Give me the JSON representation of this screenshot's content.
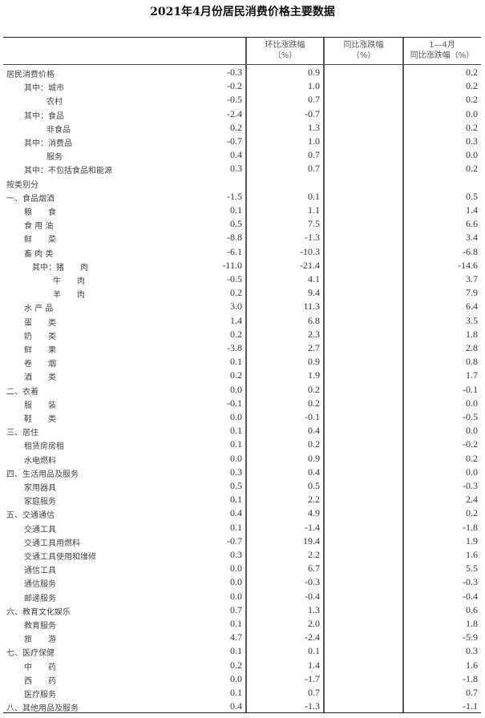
{
  "title": "2021年4月份居民消费价格主要数据",
  "headers": {
    "mom_line1": "环比涨跌幅",
    "mom_line2": "（%）",
    "yoy_line1": "同比涨跌幅",
    "yoy_line2": "（%）",
    "ytd_line1": "1—4月",
    "ytd_line2": "同比涨跌幅（%）"
  },
  "rows": [
    {
      "label": "居民消费价格",
      "level": 0,
      "mom": "-0.3",
      "yoy": "0.9",
      "ytd": "0.2"
    },
    {
      "label": "其中：城市",
      "level": 1,
      "mom": "-0.2",
      "yoy": "1.0",
      "ytd": "0.2"
    },
    {
      "label": "农村",
      "level": 2,
      "mom": "-0.5",
      "yoy": "0.7",
      "ytd": "0.2"
    },
    {
      "label": "其中：食品",
      "level": 1,
      "mom": "-2.4",
      "yoy": "-0.7",
      "ytd": "0.0"
    },
    {
      "label": "非食品",
      "level": 2,
      "mom": "0.2",
      "yoy": "1.3",
      "ytd": "0.2"
    },
    {
      "label": "其中：消费品",
      "level": 1,
      "mom": "-0.7",
      "yoy": "1.0",
      "ytd": "0.3"
    },
    {
      "label": "服务",
      "level": 2,
      "mom": "0.4",
      "yoy": "0.7",
      "ytd": "0.0"
    },
    {
      "label": "其中：不包括食品和能源",
      "level": 1,
      "mom": "0.3",
      "yoy": "0.7",
      "ytd": "0.2"
    },
    {
      "label": "按类别分",
      "level": 0,
      "mom": "",
      "yoy": "",
      "ytd": ""
    },
    {
      "label": "一、食品烟酒",
      "level": 0,
      "mom": "-1.5",
      "yoy": "0.1",
      "ytd": "0.5"
    },
    {
      "label": "粮　　食",
      "level": 1,
      "mom": "0.1",
      "yoy": "1.1",
      "ytd": "1.4"
    },
    {
      "label": "食 用 油",
      "level": 1,
      "mom": "0.5",
      "yoy": "7.5",
      "ytd": "6.6"
    },
    {
      "label": "鲜　　菜",
      "level": 1,
      "mom": "-8.8",
      "yoy": "-1.3",
      "ytd": "3.4"
    },
    {
      "label": "畜 肉 类",
      "level": 1,
      "mom": "-6.1",
      "yoy": "-10.3",
      "ytd": "-6.8"
    },
    {
      "label": "其中：猪　　肉",
      "level": 3,
      "mom": "-11.0",
      "yoy": "-21.4",
      "ytd": "-14.6"
    },
    {
      "label": "牛　　肉",
      "level": 4,
      "mom": "-0.5",
      "yoy": "4.1",
      "ytd": "3.7"
    },
    {
      "label": "羊　　肉",
      "level": 4,
      "mom": "0.2",
      "yoy": "9.4",
      "ytd": "7.9"
    },
    {
      "label": "水 产 品",
      "level": 1,
      "mom": "3.0",
      "yoy": "11.3",
      "ytd": "6.4"
    },
    {
      "label": "蛋　　类",
      "level": 1,
      "mom": "1.4",
      "yoy": "6.8",
      "ytd": "3.5"
    },
    {
      "label": "奶　　类",
      "level": 1,
      "mom": "0.2",
      "yoy": "2.3",
      "ytd": "1.8"
    },
    {
      "label": "鲜　　果",
      "level": 1,
      "mom": "-3.8",
      "yoy": "2.7",
      "ytd": "2.8"
    },
    {
      "label": "卷　　烟",
      "level": 1,
      "mom": "0.1",
      "yoy": "0.9",
      "ytd": "0.8"
    },
    {
      "label": "酒　　类",
      "level": 1,
      "mom": "0.2",
      "yoy": "1.9",
      "ytd": "1.7"
    },
    {
      "label": "二、衣着",
      "level": 0,
      "mom": "0.0",
      "yoy": "0.2",
      "ytd": "-0.1"
    },
    {
      "label": "服　　装",
      "level": 1,
      "mom": "-0.1",
      "yoy": "0.2",
      "ytd": "0.0"
    },
    {
      "label": "鞋　　类",
      "level": 1,
      "mom": "0.0",
      "yoy": "-0.1",
      "ytd": "-0.5"
    },
    {
      "label": "三、居住",
      "level": 0,
      "mom": "0.1",
      "yoy": "0.4",
      "ytd": "0.0"
    },
    {
      "label": "租赁房房租",
      "level": 1,
      "mom": "0.1",
      "yoy": "0.2",
      "ytd": "-0.2"
    },
    {
      "label": "水电燃料",
      "level": 1,
      "mom": "0.0",
      "yoy": "0.9",
      "ytd": "0.2"
    },
    {
      "label": "四、生活用品及服务",
      "level": 0,
      "mom": "0.3",
      "yoy": "0.4",
      "ytd": "0.0"
    },
    {
      "label": "家用器具",
      "level": 1,
      "mom": "0.5",
      "yoy": "0.5",
      "ytd": "-0.3"
    },
    {
      "label": "家庭服务",
      "level": 1,
      "mom": "0.1",
      "yoy": "2.2",
      "ytd": "2.4"
    },
    {
      "label": "五、交通通信",
      "level": 0,
      "mom": "0.4",
      "yoy": "4.9",
      "ytd": "0.2"
    },
    {
      "label": "交通工具",
      "level": 1,
      "mom": "0.1",
      "yoy": "-1.4",
      "ytd": "-1.8"
    },
    {
      "label": "交通工具用燃料",
      "level": 1,
      "mom": "-0.7",
      "yoy": "19.4",
      "ytd": "1.9"
    },
    {
      "label": "交通工具使用和维修",
      "level": 1,
      "mom": "0.3",
      "yoy": "2.2",
      "ytd": "1.6"
    },
    {
      "label": "通信工具",
      "level": 1,
      "mom": "0.0",
      "yoy": "6.7",
      "ytd": "5.5"
    },
    {
      "label": "通信服务",
      "level": 1,
      "mom": "0.0",
      "yoy": "-0.3",
      "ytd": "-0.3"
    },
    {
      "label": "邮递服务",
      "level": 1,
      "mom": "0.0",
      "yoy": "-0.4",
      "ytd": "-0.4"
    },
    {
      "label": "六、教育文化娱乐",
      "level": 0,
      "mom": "0.7",
      "yoy": "1.3",
      "ytd": "0.6"
    },
    {
      "label": "教育服务",
      "level": 1,
      "mom": "0.1",
      "yoy": "2.0",
      "ytd": "1.8"
    },
    {
      "label": "旅　　游",
      "level": 1,
      "mom": "4.7",
      "yoy": "-2.4",
      "ytd": "-5.9"
    },
    {
      "label": "七、医疗保健",
      "level": 0,
      "mom": "0.1",
      "yoy": "0.1",
      "ytd": "0.3"
    },
    {
      "label": "中　　药",
      "level": 1,
      "mom": "0.2",
      "yoy": "1.4",
      "ytd": "1.6"
    },
    {
      "label": "西　　药",
      "level": 1,
      "mom": "0.0",
      "yoy": "-1.7",
      "ytd": "-1.8"
    },
    {
      "label": "医疗服务",
      "level": 1,
      "mom": "0.1",
      "yoy": "0.7",
      "ytd": "0.7"
    },
    {
      "label": "八、其他用品及服务",
      "level": 0,
      "mom": "0.4",
      "yoy": "-1.3",
      "ytd": "-1.1"
    }
  ]
}
